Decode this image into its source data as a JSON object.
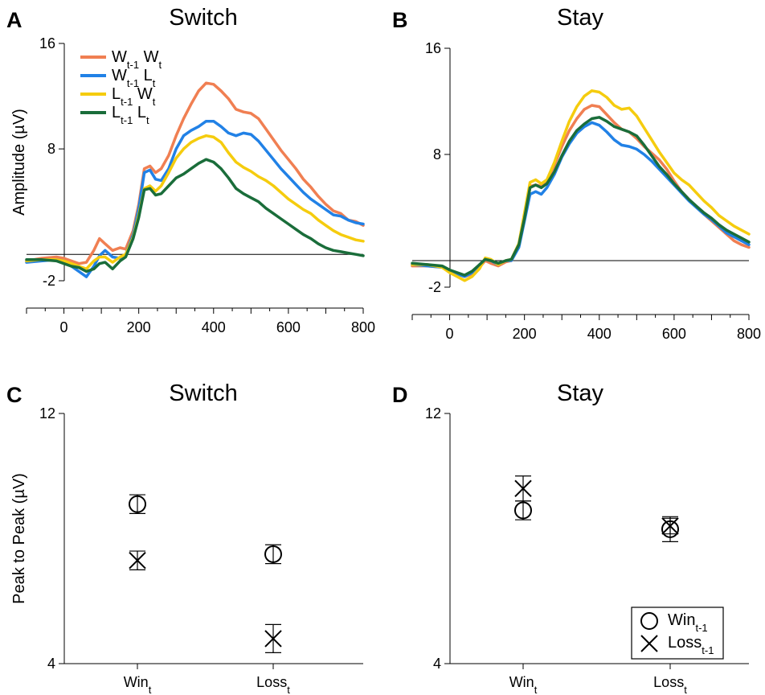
{
  "chart_data": [
    {
      "panel": "A",
      "type": "line",
      "title": "Switch",
      "xlabel": "",
      "ylabel": "Amplitude (µV)",
      "xlim": [
        -100,
        800
      ],
      "ylim": [
        -2,
        16
      ],
      "xticks": [
        0,
        200,
        400,
        600,
        800
      ],
      "yticks": [
        -2,
        8,
        16
      ],
      "legend_position": "top-left",
      "series": [
        {
          "name": "Wt-1 Wt",
          "base": "W",
          "sub1": "t-1",
          "mid": " W",
          "sub2": "t",
          "color": "#F07F52",
          "x": [
            -100,
            -60,
            -20,
            0,
            20,
            40,
            60,
            80,
            95,
            110,
            130,
            150,
            165,
            185,
            200,
            215,
            230,
            245,
            260,
            280,
            300,
            320,
            340,
            360,
            380,
            400,
            420,
            440,
            460,
            480,
            500,
            520,
            540,
            560,
            580,
            600,
            620,
            640,
            660,
            680,
            700,
            720,
            740,
            760,
            780,
            800
          ],
          "y": [
            -0.5,
            -0.3,
            -0.2,
            -0.3,
            -0.5,
            -0.7,
            -0.6,
            0.3,
            1.2,
            0.8,
            0.3,
            0.5,
            0.4,
            1.8,
            3.8,
            6.5,
            6.7,
            6.2,
            6.5,
            7.5,
            9.0,
            10.3,
            11.4,
            12.4,
            13.0,
            12.9,
            12.4,
            11.8,
            11.0,
            10.8,
            10.7,
            10.3,
            9.5,
            8.7,
            7.9,
            7.2,
            6.5,
            5.7,
            5.1,
            4.4,
            3.8,
            3.3,
            3.1,
            2.6,
            2.5,
            2.2
          ]
        },
        {
          "name": "Wt-1 Lt",
          "base": "W",
          "sub1": "t-1",
          "mid": " L",
          "sub2": "t",
          "color": "#2181E6",
          "x": [
            -100,
            -60,
            -20,
            0,
            20,
            40,
            60,
            80,
            95,
            110,
            130,
            150,
            165,
            185,
            200,
            215,
            230,
            245,
            260,
            280,
            300,
            320,
            340,
            360,
            380,
            400,
            420,
            440,
            460,
            480,
            500,
            520,
            540,
            560,
            580,
            600,
            620,
            640,
            660,
            680,
            700,
            720,
            740,
            760,
            780,
            800
          ],
          "y": [
            -0.6,
            -0.5,
            -0.4,
            -0.5,
            -0.9,
            -1.3,
            -1.7,
            -0.9,
            -0.1,
            0.3,
            -0.2,
            -0.3,
            0.0,
            1.5,
            3.5,
            6.2,
            6.4,
            5.7,
            5.6,
            6.5,
            8.0,
            9.0,
            9.4,
            9.7,
            10.1,
            10.1,
            9.7,
            9.2,
            9.0,
            9.2,
            9.1,
            8.6,
            7.9,
            7.2,
            6.5,
            5.9,
            5.3,
            4.7,
            4.2,
            3.8,
            3.4,
            3.0,
            2.9,
            2.6,
            2.4,
            2.3
          ]
        },
        {
          "name": "Lt-1 Wt",
          "base": "L",
          "sub1": "t-1",
          "mid": " W",
          "sub2": "t",
          "color": "#F5CC0E",
          "x": [
            -100,
            -60,
            -20,
            0,
            20,
            40,
            60,
            80,
            95,
            110,
            130,
            150,
            165,
            185,
            200,
            215,
            230,
            245,
            260,
            280,
            300,
            320,
            340,
            360,
            380,
            400,
            420,
            440,
            460,
            480,
            500,
            520,
            540,
            560,
            580,
            600,
            620,
            640,
            660,
            680,
            700,
            720,
            740,
            760,
            780,
            800
          ],
          "y": [
            -0.5,
            -0.4,
            -0.4,
            -0.5,
            -0.7,
            -0.9,
            -1.1,
            -0.5,
            -0.2,
            -0.2,
            -0.6,
            -0.2,
            0.0,
            1.3,
            3.0,
            5.0,
            5.2,
            4.8,
            5.2,
            6.2,
            7.3,
            8.0,
            8.5,
            8.8,
            9.0,
            8.9,
            8.5,
            7.7,
            7.0,
            6.6,
            6.3,
            5.9,
            5.6,
            5.2,
            4.7,
            4.2,
            3.8,
            3.4,
            3.1,
            2.6,
            2.2,
            1.8,
            1.5,
            1.3,
            1.1,
            1.0
          ]
        },
        {
          "name": "Lt-1 Lt",
          "base": "L",
          "sub1": "t-1",
          "mid": " L",
          "sub2": "t",
          "color": "#1A6D3A",
          "x": [
            -100,
            -60,
            -20,
            0,
            20,
            40,
            60,
            80,
            95,
            110,
            130,
            150,
            165,
            185,
            200,
            215,
            230,
            245,
            260,
            280,
            300,
            320,
            340,
            360,
            380,
            400,
            420,
            440,
            460,
            480,
            500,
            520,
            540,
            560,
            580,
            600,
            620,
            640,
            660,
            680,
            700,
            720,
            740,
            760,
            780,
            800
          ],
          "y": [
            -0.4,
            -0.4,
            -0.5,
            -0.7,
            -0.9,
            -1.0,
            -1.3,
            -1.1,
            -0.7,
            -0.6,
            -1.1,
            -0.5,
            -0.2,
            1.2,
            2.8,
            4.9,
            5.0,
            4.5,
            4.6,
            5.2,
            5.8,
            6.1,
            6.5,
            6.9,
            7.2,
            7.0,
            6.5,
            5.8,
            5.0,
            4.6,
            4.3,
            4.0,
            3.5,
            3.1,
            2.7,
            2.3,
            1.9,
            1.5,
            1.2,
            0.8,
            0.5,
            0.3,
            0.2,
            0.1,
            0.0,
            -0.1
          ]
        }
      ]
    },
    {
      "panel": "B",
      "type": "line",
      "title": "Stay",
      "xlabel": "",
      "ylabel": "",
      "xlim": [
        -100,
        800
      ],
      "ylim": [
        -2,
        16
      ],
      "xticks": [
        0,
        200,
        400,
        600,
        800
      ],
      "yticks": [
        -2,
        8,
        16
      ],
      "series": [
        {
          "name": "Wt-1 Wt",
          "color": "#F07F52",
          "x": [
            -100,
            -60,
            -20,
            0,
            20,
            40,
            60,
            80,
            95,
            110,
            130,
            150,
            165,
            185,
            200,
            215,
            230,
            245,
            260,
            280,
            300,
            320,
            340,
            360,
            380,
            400,
            420,
            440,
            460,
            480,
            500,
            520,
            540,
            560,
            580,
            600,
            620,
            640,
            660,
            680,
            700,
            720,
            740,
            760,
            780,
            800
          ],
          "y": [
            -0.4,
            -0.4,
            -0.5,
            -0.8,
            -1.0,
            -1.2,
            -1.0,
            -0.5,
            0.0,
            -0.2,
            -0.4,
            -0.1,
            0.0,
            1.2,
            3.5,
            5.6,
            5.7,
            5.6,
            6.0,
            7.2,
            8.6,
            9.8,
            10.7,
            11.4,
            11.7,
            11.6,
            11.0,
            10.4,
            9.9,
            9.7,
            9.2,
            8.6,
            8.1,
            7.6,
            6.9,
            6.0,
            5.2,
            4.6,
            4.0,
            3.5,
            3.0,
            2.5,
            2.0,
            1.5,
            1.2,
            1.0
          ]
        },
        {
          "name": "Wt-1 Lt",
          "color": "#2181E6",
          "x": [
            -100,
            -60,
            -20,
            0,
            20,
            40,
            60,
            80,
            95,
            110,
            130,
            150,
            165,
            185,
            200,
            215,
            230,
            245,
            260,
            280,
            300,
            320,
            340,
            360,
            380,
            400,
            420,
            440,
            460,
            480,
            500,
            520,
            540,
            560,
            580,
            600,
            620,
            640,
            660,
            680,
            700,
            720,
            740,
            760,
            780,
            800
          ],
          "y": [
            -0.3,
            -0.4,
            -0.5,
            -0.8,
            -1.0,
            -1.2,
            -0.9,
            -0.3,
            0.1,
            0.0,
            -0.3,
            0.0,
            0.0,
            1.0,
            3.0,
            5.0,
            5.2,
            5.0,
            5.5,
            6.5,
            7.8,
            8.8,
            9.6,
            10.1,
            10.4,
            10.2,
            9.7,
            9.1,
            8.7,
            8.6,
            8.4,
            8.0,
            7.5,
            6.9,
            6.3,
            5.7,
            5.1,
            4.5,
            4.0,
            3.5,
            3.1,
            2.6,
            2.1,
            1.8,
            1.5,
            1.2
          ]
        },
        {
          "name": "Lt-1 Wt",
          "color": "#F5CC0E",
          "x": [
            -100,
            -60,
            -20,
            0,
            20,
            40,
            60,
            80,
            95,
            110,
            130,
            150,
            165,
            185,
            200,
            215,
            230,
            245,
            260,
            280,
            300,
            320,
            340,
            360,
            380,
            400,
            420,
            440,
            460,
            480,
            500,
            520,
            540,
            560,
            580,
            600,
            620,
            640,
            660,
            680,
            700,
            720,
            740,
            760,
            780,
            800
          ],
          "y": [
            -0.3,
            -0.3,
            -0.5,
            -0.9,
            -1.2,
            -1.5,
            -1.2,
            -0.6,
            0.2,
            0.1,
            -0.3,
            0.0,
            0.1,
            1.3,
            3.6,
            5.9,
            6.1,
            5.8,
            6.1,
            7.4,
            9.0,
            10.5,
            11.6,
            12.4,
            12.8,
            12.7,
            12.3,
            11.7,
            11.4,
            11.5,
            10.9,
            10.0,
            9.1,
            8.2,
            7.4,
            6.6,
            6.1,
            5.7,
            5.1,
            4.5,
            4.0,
            3.4,
            3.0,
            2.6,
            2.3,
            2.0
          ]
        },
        {
          "name": "Lt-1 Lt",
          "color": "#1A6D3A",
          "x": [
            -100,
            -60,
            -20,
            0,
            20,
            40,
            60,
            80,
            95,
            110,
            130,
            150,
            165,
            185,
            200,
            215,
            230,
            245,
            260,
            280,
            300,
            320,
            340,
            360,
            380,
            400,
            420,
            440,
            460,
            480,
            500,
            520,
            540,
            560,
            580,
            600,
            620,
            640,
            660,
            680,
            700,
            720,
            740,
            760,
            780,
            800
          ],
          "y": [
            -0.2,
            -0.3,
            -0.4,
            -0.7,
            -0.9,
            -1.1,
            -0.8,
            -0.3,
            0.1,
            0.0,
            -0.2,
            0.0,
            0.1,
            1.2,
            3.2,
            5.5,
            5.7,
            5.5,
            5.8,
            6.7,
            7.9,
            9.0,
            9.8,
            10.3,
            10.7,
            10.8,
            10.5,
            10.1,
            9.9,
            9.7,
            9.4,
            8.7,
            7.9,
            7.1,
            6.5,
            5.8,
            5.2,
            4.6,
            4.1,
            3.6,
            3.2,
            2.7,
            2.3,
            2.0,
            1.7,
            1.4
          ]
        }
      ]
    },
    {
      "panel": "C",
      "type": "scatter",
      "title": "Switch",
      "xlabel": "",
      "ylabel": "Peak to Peak (µV)",
      "ylim": [
        4,
        12
      ],
      "yticks": [
        4,
        12
      ],
      "categories": [
        {
          "base": "Win",
          "sub": "t"
        },
        {
          "base": "Loss",
          "sub": "t"
        }
      ],
      "series": [
        {
          "name": "Wint-1",
          "marker": "circle",
          "values": [
            9.1,
            7.5
          ],
          "errors": [
            0.3,
            0.3
          ]
        },
        {
          "name": "Losst-1",
          "marker": "x",
          "values": [
            7.3,
            4.8
          ],
          "errors": [
            0.3,
            0.45
          ]
        }
      ]
    },
    {
      "panel": "D",
      "type": "scatter",
      "title": "Stay",
      "xlabel": "",
      "ylabel": "",
      "ylim": [
        4,
        12
      ],
      "yticks": [
        4,
        12
      ],
      "categories": [
        {
          "base": "Win",
          "sub": "t"
        },
        {
          "base": "Loss",
          "sub": "t"
        }
      ],
      "legend_position": "bottom-right",
      "legend": [
        {
          "marker": "circle",
          "base": "Win",
          "sub": "t-1"
        },
        {
          "marker": "x",
          "base": "Loss",
          "sub": "t-1"
        }
      ],
      "series": [
        {
          "name": "Wint-1",
          "marker": "circle",
          "values": [
            8.9,
            8.3
          ],
          "errors": [
            0.3,
            0.4
          ]
        },
        {
          "name": "Losst-1",
          "marker": "x",
          "values": [
            9.6,
            8.4
          ],
          "errors": [
            0.4,
            0.25
          ]
        }
      ]
    }
  ]
}
